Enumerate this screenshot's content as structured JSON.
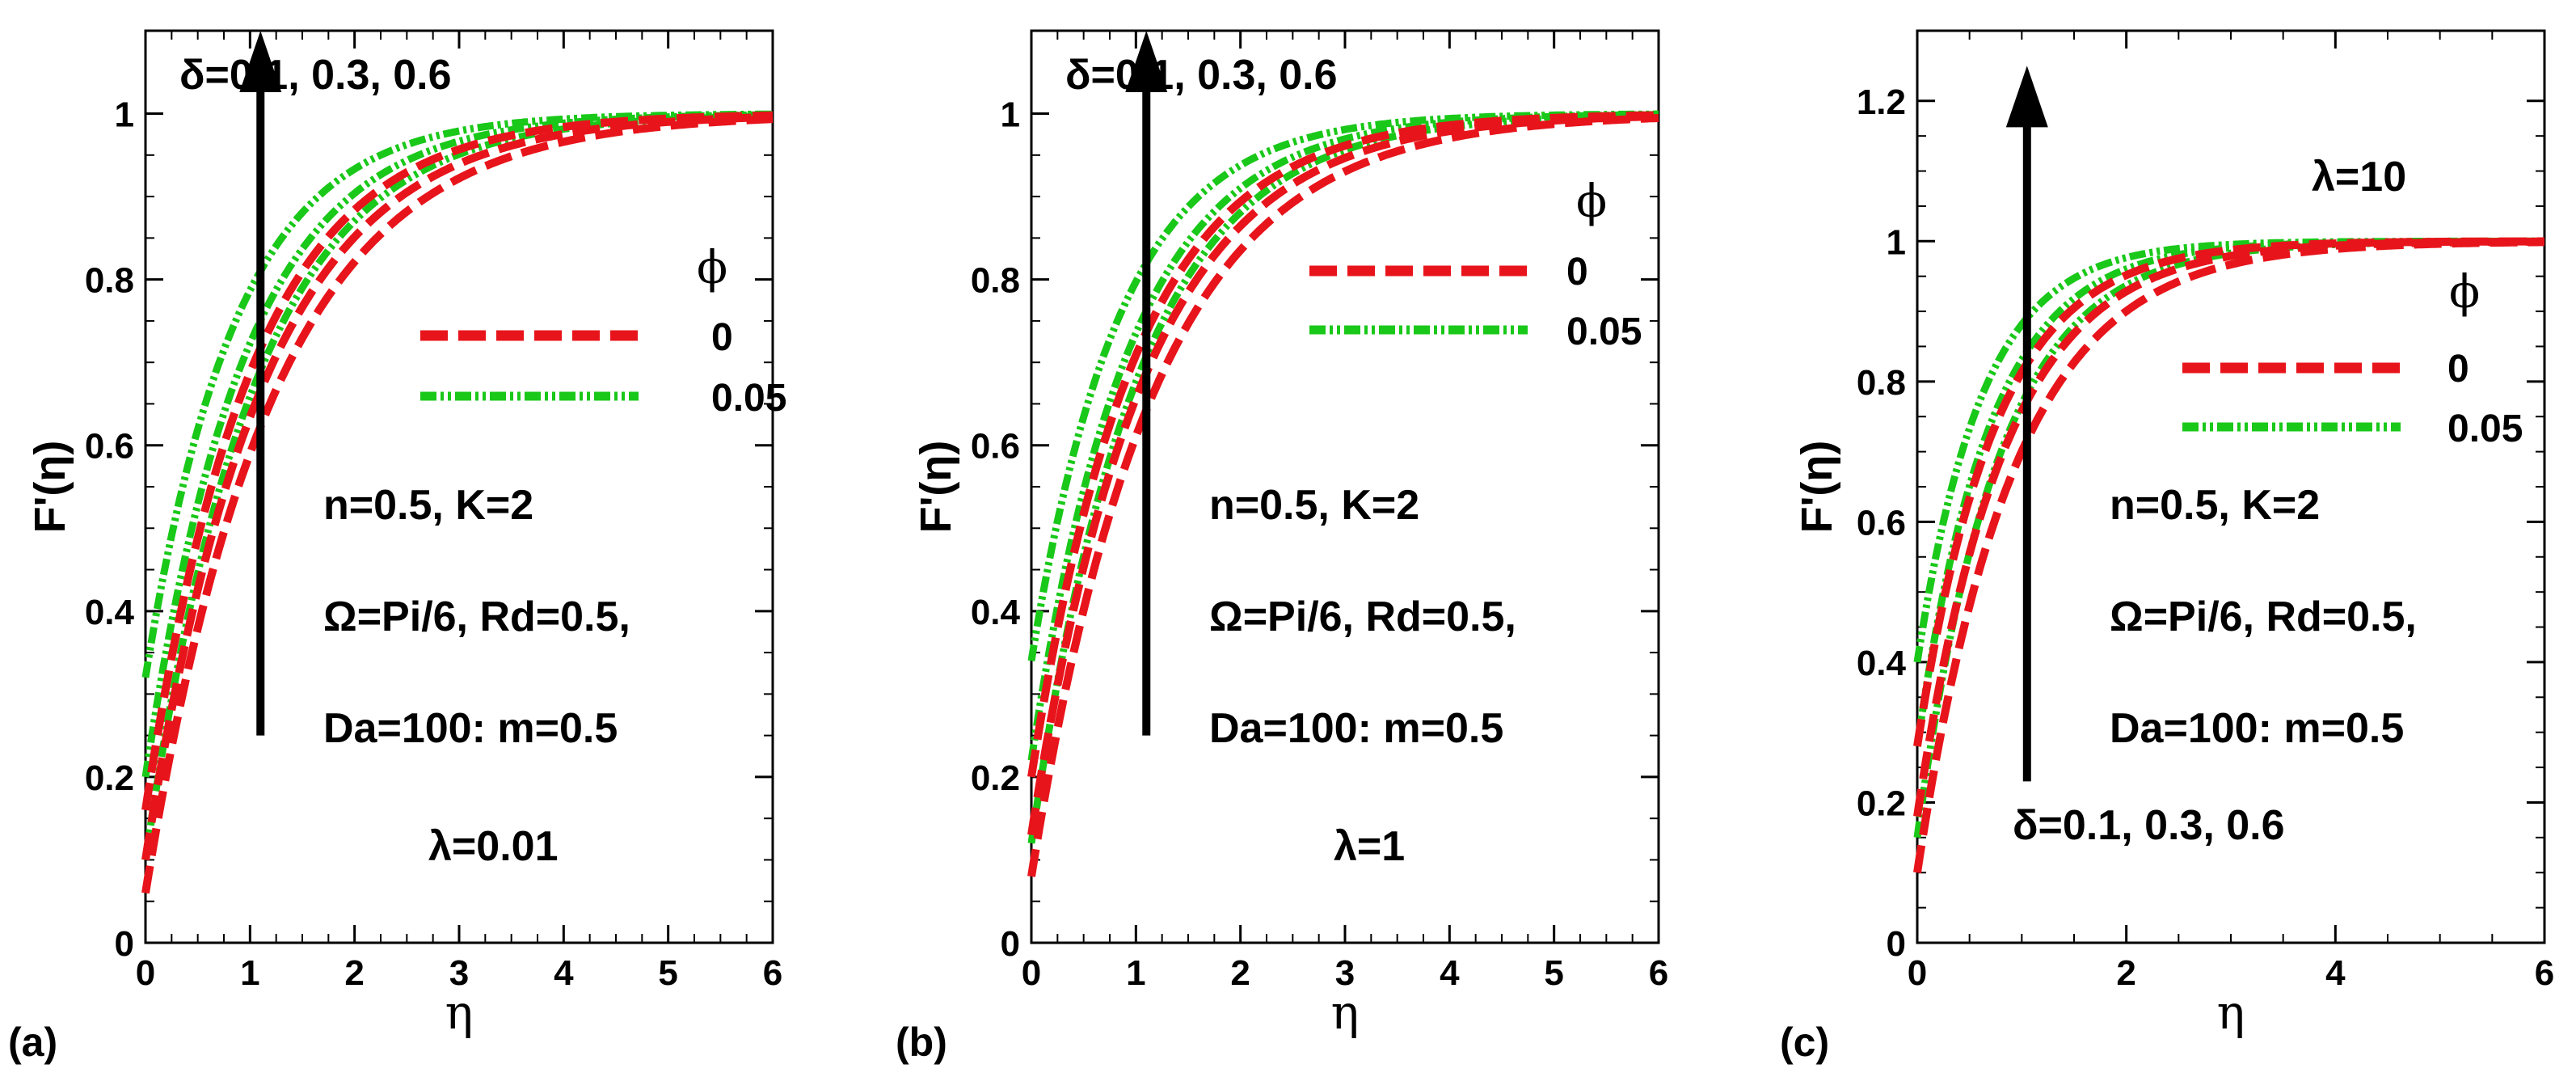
{
  "colors": {
    "phi0": "#e8141b",
    "phi005": "#19c819",
    "axis": "#000000",
    "arrow": "#000000"
  },
  "chart_data": [
    {
      "id": "a",
      "type": "line",
      "panel_label": "(a)",
      "ylabel": "F'(η)",
      "xlabel": "η",
      "xlim": [
        0,
        6
      ],
      "ylim": [
        0,
        1.1
      ],
      "xticks": [
        0,
        1,
        2,
        3,
        4,
        5,
        6
      ],
      "yticks": [
        0,
        0.2,
        0.4,
        0.6,
        0.8,
        1
      ],
      "legend": {
        "title": "ϕ",
        "entries": [
          "0",
          "0.05"
        ]
      },
      "annotations": [
        "n=0.5,  K=2",
        "Ω=Pi/6, Rd=0.5,",
        "Da=100: m=0.5",
        "λ=0.01"
      ],
      "arrow_label": "δ=0.1, 0.3, 0.6",
      "arrow_data": {
        "x": 1.1,
        "from": 0.25,
        "to": 1.1,
        "direction": "up"
      },
      "series": [
        {
          "name": "ϕ=0, δ=0.1",
          "phi": "0",
          "f0": 0.06,
          "k": 0.83
        },
        {
          "name": "ϕ=0, δ=0.3",
          "phi": "0",
          "f0": 0.1,
          "k": 0.9
        },
        {
          "name": "ϕ=0, δ=0.6",
          "phi": "0",
          "f0": 0.16,
          "k": 0.99
        },
        {
          "name": "ϕ=0.05, δ=0.1",
          "phi": "0.05",
          "f0": 0.1,
          "k": 0.97
        },
        {
          "name": "ϕ=0.05, δ=0.3",
          "phi": "0.05",
          "f0": 0.2,
          "k": 1.06
        },
        {
          "name": "ϕ=0.05, δ=0.6",
          "phi": "0.05",
          "f0": 0.32,
          "k": 1.16
        }
      ]
    },
    {
      "id": "b",
      "type": "line",
      "panel_label": "(b)",
      "ylabel": "F'(η)",
      "xlabel": "η",
      "xlim": [
        0,
        6
      ],
      "ylim": [
        0,
        1.1
      ],
      "xticks": [
        0,
        1,
        2,
        3,
        4,
        5,
        6
      ],
      "yticks": [
        0,
        0.2,
        0.4,
        0.6,
        0.8,
        1
      ],
      "legend": {
        "title": "ϕ",
        "entries": [
          "0",
          "0.05"
        ]
      },
      "annotations": [
        "n=0.5,  K=2",
        "Ω=Pi/6, Rd=0.5,",
        "Da=100: m=0.5",
        "λ=1"
      ],
      "arrow_label": "δ=0.1, 0.3, 0.6",
      "arrow_data": {
        "x": 1.1,
        "from": 0.25,
        "to": 1.1,
        "direction": "up"
      },
      "series": [
        {
          "name": "ϕ=0, δ=0.1",
          "phi": "0",
          "f0": 0.08,
          "k": 0.86
        },
        {
          "name": "ϕ=0, δ=0.3",
          "phi": "0",
          "f0": 0.13,
          "k": 0.93
        },
        {
          "name": "ϕ=0, δ=0.6",
          "phi": "0",
          "f0": 0.2,
          "k": 1.01
        },
        {
          "name": "ϕ=0.05, δ=0.1",
          "phi": "0.05",
          "f0": 0.12,
          "k": 1.0
        },
        {
          "name": "ϕ=0.05, δ=0.3",
          "phi": "0.05",
          "f0": 0.22,
          "k": 1.08
        },
        {
          "name": "ϕ=0.05, δ=0.6",
          "phi": "0.05",
          "f0": 0.34,
          "k": 1.18
        }
      ]
    },
    {
      "id": "c",
      "type": "line",
      "panel_label": "(c)",
      "ylabel": "F'(η)",
      "xlabel": "η",
      "xlim": [
        0,
        6
      ],
      "ylim": [
        0,
        1.3
      ],
      "xticks": [
        0,
        2,
        4,
        6
      ],
      "yticks": [
        0,
        0.2,
        0.4,
        0.6,
        0.8,
        1,
        1.2
      ],
      "legend": {
        "title": "ϕ",
        "entries": [
          "0",
          "0.05"
        ]
      },
      "annotations": [
        "λ=10",
        "n=0.5,  K=2",
        "Ω=Pi/6, Rd=0.5,",
        "Da=100: m=0.5"
      ],
      "arrow_label": "δ=0.1, 0.3, 0.6",
      "arrow_data": {
        "x": 1.05,
        "from": 0.23,
        "to": 1.25,
        "direction": "up"
      },
      "series": [
        {
          "name": "ϕ=0, δ=0.1",
          "phi": "0",
          "f0": 0.1,
          "k": 1.1
        },
        {
          "name": "ϕ=0, δ=0.3",
          "phi": "0",
          "f0": 0.18,
          "k": 1.22
        },
        {
          "name": "ϕ=0, δ=0.6",
          "phi": "0",
          "f0": 0.28,
          "k": 1.35
        },
        {
          "name": "ϕ=0.05, δ=0.1",
          "phi": "0.05",
          "f0": 0.15,
          "k": 1.3
        },
        {
          "name": "ϕ=0.05, δ=0.3",
          "phi": "0.05",
          "f0": 0.28,
          "k": 1.45
        },
        {
          "name": "ϕ=0.05, δ=0.6",
          "phi": "0.05",
          "f0": 0.4,
          "k": 1.62
        }
      ]
    }
  ]
}
